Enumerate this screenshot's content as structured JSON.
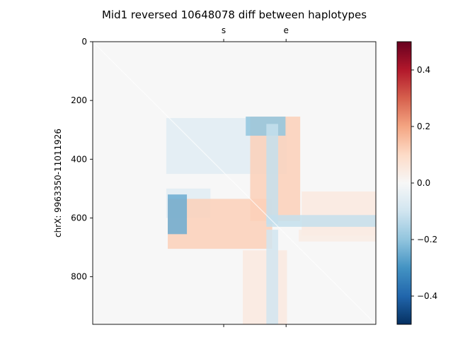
{
  "chart_data": {
    "type": "heatmap",
    "title": "Mid1 reversed 10648078 diff between haplotypes",
    "ylabel": "chrX: 9963350-11011926",
    "xlabel": "",
    "extent": [
      0,
      962
    ],
    "y_ticks": [
      0,
      200,
      400,
      600,
      800
    ],
    "y_tick_labels": [
      "0",
      "200",
      "400",
      "600",
      "800"
    ],
    "top_markers": [
      {
        "label": "s",
        "position": 445
      },
      {
        "label": "e",
        "position": 657
      }
    ],
    "colorbar": {
      "colormap": "RdBu_r",
      "vmin": -0.5,
      "vmax": 0.5,
      "ticks": [
        -0.4,
        -0.2,
        0.0,
        0.2,
        0.4
      ],
      "tick_labels": [
        "−0.4",
        "−0.2",
        "0.0",
        "0.2",
        "0.4"
      ]
    },
    "regions": [
      {
        "x": [
          0,
          962
        ],
        "y": [
          0,
          962
        ],
        "value": 0.0
      },
      {
        "x": [
          250,
          660
        ],
        "y": [
          260,
          450
        ],
        "value": -0.06
      },
      {
        "x": [
          250,
          400
        ],
        "y": [
          500,
          600
        ],
        "value": -0.06
      },
      {
        "x": [
          535,
          705
        ],
        "y": [
          255,
          610
        ],
        "value": 0.12
      },
      {
        "x": [
          255,
          610
        ],
        "y": [
          535,
          705
        ],
        "value": 0.12
      },
      {
        "x": [
          710,
          962
        ],
        "y": [
          510,
          660
        ],
        "value": 0.05
      },
      {
        "x": [
          510,
          660
        ],
        "y": [
          710,
          962
        ],
        "value": 0.05
      },
      {
        "x": [
          520,
          655
        ],
        "y": [
          255,
          320
        ],
        "value": -0.2
      },
      {
        "x": [
          255,
          320
        ],
        "y": [
          520,
          655
        ],
        "value": -0.25
      },
      {
        "x": [
          590,
          630
        ],
        "y": [
          280,
          620
        ],
        "value": -0.12
      },
      {
        "x": [
          590,
          962
        ],
        "y": [
          590,
          630
        ],
        "value": -0.12
      },
      {
        "x": [
          590,
          630
        ],
        "y": [
          640,
          962
        ],
        "value": -0.1
      },
      {
        "x": [
          700,
          962
        ],
        "y": [
          640,
          680
        ],
        "value": 0.04
      }
    ]
  }
}
